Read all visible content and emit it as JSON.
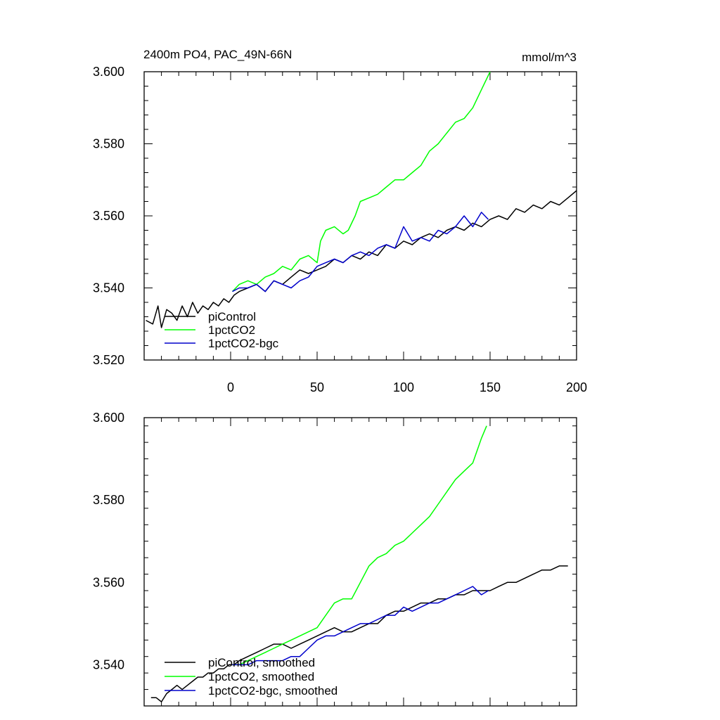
{
  "chart_data": [
    {
      "type": "line",
      "title": "2400m PO4, PAC_49N-66N",
      "units": "mmol/m^3",
      "xlim": [
        -50,
        200
      ],
      "ylim": [
        3.52,
        3.6
      ],
      "xticks": [
        "0",
        "50",
        "100",
        "150",
        "200"
      ],
      "yticks": [
        "3.520",
        "3.540",
        "3.560",
        "3.580",
        "3.600"
      ],
      "grid": false,
      "legend_position": "bottom-left",
      "series": [
        {
          "name": "piControl",
          "color": "#000000",
          "x": [
            -49,
            -45,
            -42,
            -40,
            -37,
            -34,
            -31,
            -28,
            -25,
            -22,
            -19,
            -16,
            -13,
            -10,
            -7,
            -4,
            -1,
            2,
            5,
            10,
            15,
            20,
            25,
            30,
            35,
            40,
            45,
            50,
            55,
            60,
            65,
            70,
            75,
            80,
            85,
            90,
            95,
            100,
            105,
            110,
            115,
            120,
            125,
            130,
            135,
            140,
            145,
            150,
            155,
            160,
            165,
            170,
            175,
            180,
            185,
            190,
            195,
            200
          ],
          "y": [
            3.531,
            3.53,
            3.535,
            3.529,
            3.534,
            3.533,
            3.531,
            3.535,
            3.532,
            3.536,
            3.533,
            3.535,
            3.534,
            3.536,
            3.535,
            3.537,
            3.536,
            3.538,
            3.539,
            3.54,
            3.541,
            3.539,
            3.542,
            3.541,
            3.543,
            3.545,
            3.544,
            3.545,
            3.546,
            3.548,
            3.547,
            3.549,
            3.548,
            3.55,
            3.549,
            3.552,
            3.551,
            3.553,
            3.552,
            3.554,
            3.555,
            3.554,
            3.556,
            3.557,
            3.556,
            3.558,
            3.557,
            3.559,
            3.56,
            3.559,
            3.562,
            3.561,
            3.563,
            3.562,
            3.564,
            3.563,
            3.565,
            3.567
          ]
        },
        {
          "name": "1pctCO2",
          "color": "#00ff00",
          "x": [
            1,
            5,
            10,
            15,
            20,
            25,
            30,
            35,
            40,
            45,
            50,
            52,
            55,
            60,
            65,
            68,
            72,
            75,
            80,
            85,
            90,
            95,
            100,
            105,
            110,
            115,
            120,
            125,
            130,
            135,
            140,
            145,
            150
          ],
          "y": [
            3.539,
            3.541,
            3.542,
            3.541,
            3.543,
            3.544,
            3.546,
            3.545,
            3.548,
            3.549,
            3.547,
            3.553,
            3.556,
            3.557,
            3.555,
            3.556,
            3.56,
            3.564,
            3.565,
            3.566,
            3.568,
            3.57,
            3.57,
            3.572,
            3.574,
            3.578,
            3.58,
            3.583,
            3.586,
            3.587,
            3.59,
            3.595,
            3.6
          ]
        },
        {
          "name": "1pctCO2-bgc",
          "color": "#0000cc",
          "x": [
            1,
            5,
            10,
            15,
            20,
            25,
            30,
            35,
            40,
            45,
            50,
            55,
            60,
            65,
            70,
            75,
            80,
            85,
            90,
            95,
            100,
            105,
            110,
            115,
            120,
            125,
            130,
            135,
            140,
            145,
            149
          ],
          "y": [
            3.539,
            3.54,
            3.54,
            3.541,
            3.539,
            3.542,
            3.541,
            3.54,
            3.542,
            3.543,
            3.546,
            3.547,
            3.548,
            3.547,
            3.549,
            3.55,
            3.549,
            3.551,
            3.552,
            3.551,
            3.557,
            3.553,
            3.554,
            3.553,
            3.556,
            3.555,
            3.557,
            3.56,
            3.557,
            3.561,
            3.559
          ]
        }
      ]
    },
    {
      "type": "line",
      "xlim": [
        -50,
        200
      ],
      "ylim": [
        3.53,
        3.6
      ],
      "yticks": [
        "3.540",
        "3.560",
        "3.580",
        "3.600"
      ],
      "grid": false,
      "legend_position": "bottom-left",
      "series": [
        {
          "name": "piControl, smoothed",
          "color": "#000000",
          "x": [
            -46,
            -43,
            -40,
            -37,
            -34,
            -31,
            -28,
            -25,
            -22,
            -19,
            -16,
            -13,
            -10,
            -7,
            -4,
            -1,
            2,
            5,
            10,
            15,
            20,
            25,
            30,
            35,
            40,
            45,
            50,
            55,
            60,
            65,
            70,
            75,
            80,
            85,
            90,
            95,
            100,
            105,
            110,
            115,
            120,
            125,
            130,
            135,
            140,
            145,
            150,
            155,
            160,
            165,
            170,
            175,
            180,
            185,
            190,
            195
          ],
          "y": [
            3.532,
            3.532,
            3.531,
            3.533,
            3.534,
            3.535,
            3.534,
            3.535,
            3.536,
            3.537,
            3.537,
            3.538,
            3.538,
            3.539,
            3.539,
            3.54,
            3.54,
            3.541,
            3.542,
            3.543,
            3.544,
            3.545,
            3.545,
            3.544,
            3.545,
            3.546,
            3.547,
            3.548,
            3.549,
            3.548,
            3.548,
            3.549,
            3.55,
            3.55,
            3.552,
            3.553,
            3.553,
            3.554,
            3.555,
            3.555,
            3.556,
            3.556,
            3.557,
            3.557,
            3.558,
            3.558,
            3.558,
            3.559,
            3.56,
            3.56,
            3.561,
            3.562,
            3.563,
            3.563,
            3.564,
            3.564
          ]
        },
        {
          "name": "1pctCO2, smoothed",
          "color": "#00ff00",
          "x": [
            1,
            5,
            10,
            15,
            20,
            25,
            30,
            35,
            40,
            45,
            50,
            55,
            60,
            65,
            70,
            75,
            80,
            85,
            90,
            95,
            100,
            105,
            110,
            115,
            120,
            125,
            130,
            135,
            140,
            145,
            148
          ],
          "y": [
            3.54,
            3.54,
            3.541,
            3.542,
            3.543,
            3.544,
            3.545,
            3.546,
            3.547,
            3.548,
            3.549,
            3.552,
            3.555,
            3.556,
            3.556,
            3.56,
            3.564,
            3.566,
            3.567,
            3.569,
            3.57,
            3.572,
            3.574,
            3.576,
            3.579,
            3.582,
            3.585,
            3.587,
            3.589,
            3.595,
            3.598
          ]
        },
        {
          "name": "1pctCO2-bgc, smoothed",
          "color": "#0000cc",
          "x": [
            1,
            5,
            10,
            15,
            20,
            25,
            30,
            35,
            40,
            45,
            50,
            55,
            60,
            65,
            70,
            75,
            80,
            85,
            90,
            95,
            100,
            105,
            110,
            115,
            120,
            125,
            130,
            135,
            140,
            145,
            149
          ],
          "y": [
            3.54,
            3.54,
            3.54,
            3.541,
            3.541,
            3.541,
            3.541,
            3.542,
            3.542,
            3.544,
            3.546,
            3.547,
            3.547,
            3.548,
            3.549,
            3.55,
            3.55,
            3.551,
            3.552,
            3.552,
            3.554,
            3.553,
            3.554,
            3.555,
            3.555,
            3.556,
            3.557,
            3.558,
            3.559,
            3.557,
            3.558
          ]
        }
      ]
    }
  ]
}
